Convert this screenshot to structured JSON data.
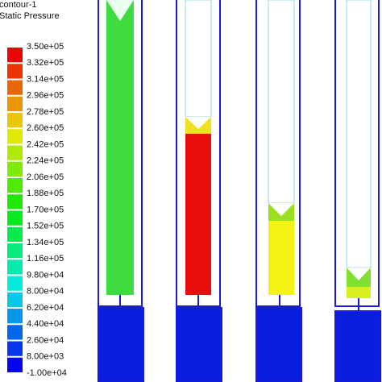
{
  "legend": {
    "title": [
      "contour-1",
      "Static Pressure"
    ],
    "labels": [
      "3.50e+05",
      "3.32e+05",
      "3.14e+05",
      "2.96e+05",
      "2.78e+05",
      "2.60e+05",
      "2.42e+05",
      "2.24e+05",
      "2.06e+05",
      "1.88e+05",
      "1.70e+05",
      "1.52e+05",
      "1.34e+05",
      "1.16e+05",
      "9.80e+04",
      "8.00e+04",
      "6.20e+04",
      "4.40e+04",
      "2.60e+04",
      "8.00e+03",
      "-1.00e+04"
    ]
  }
}
